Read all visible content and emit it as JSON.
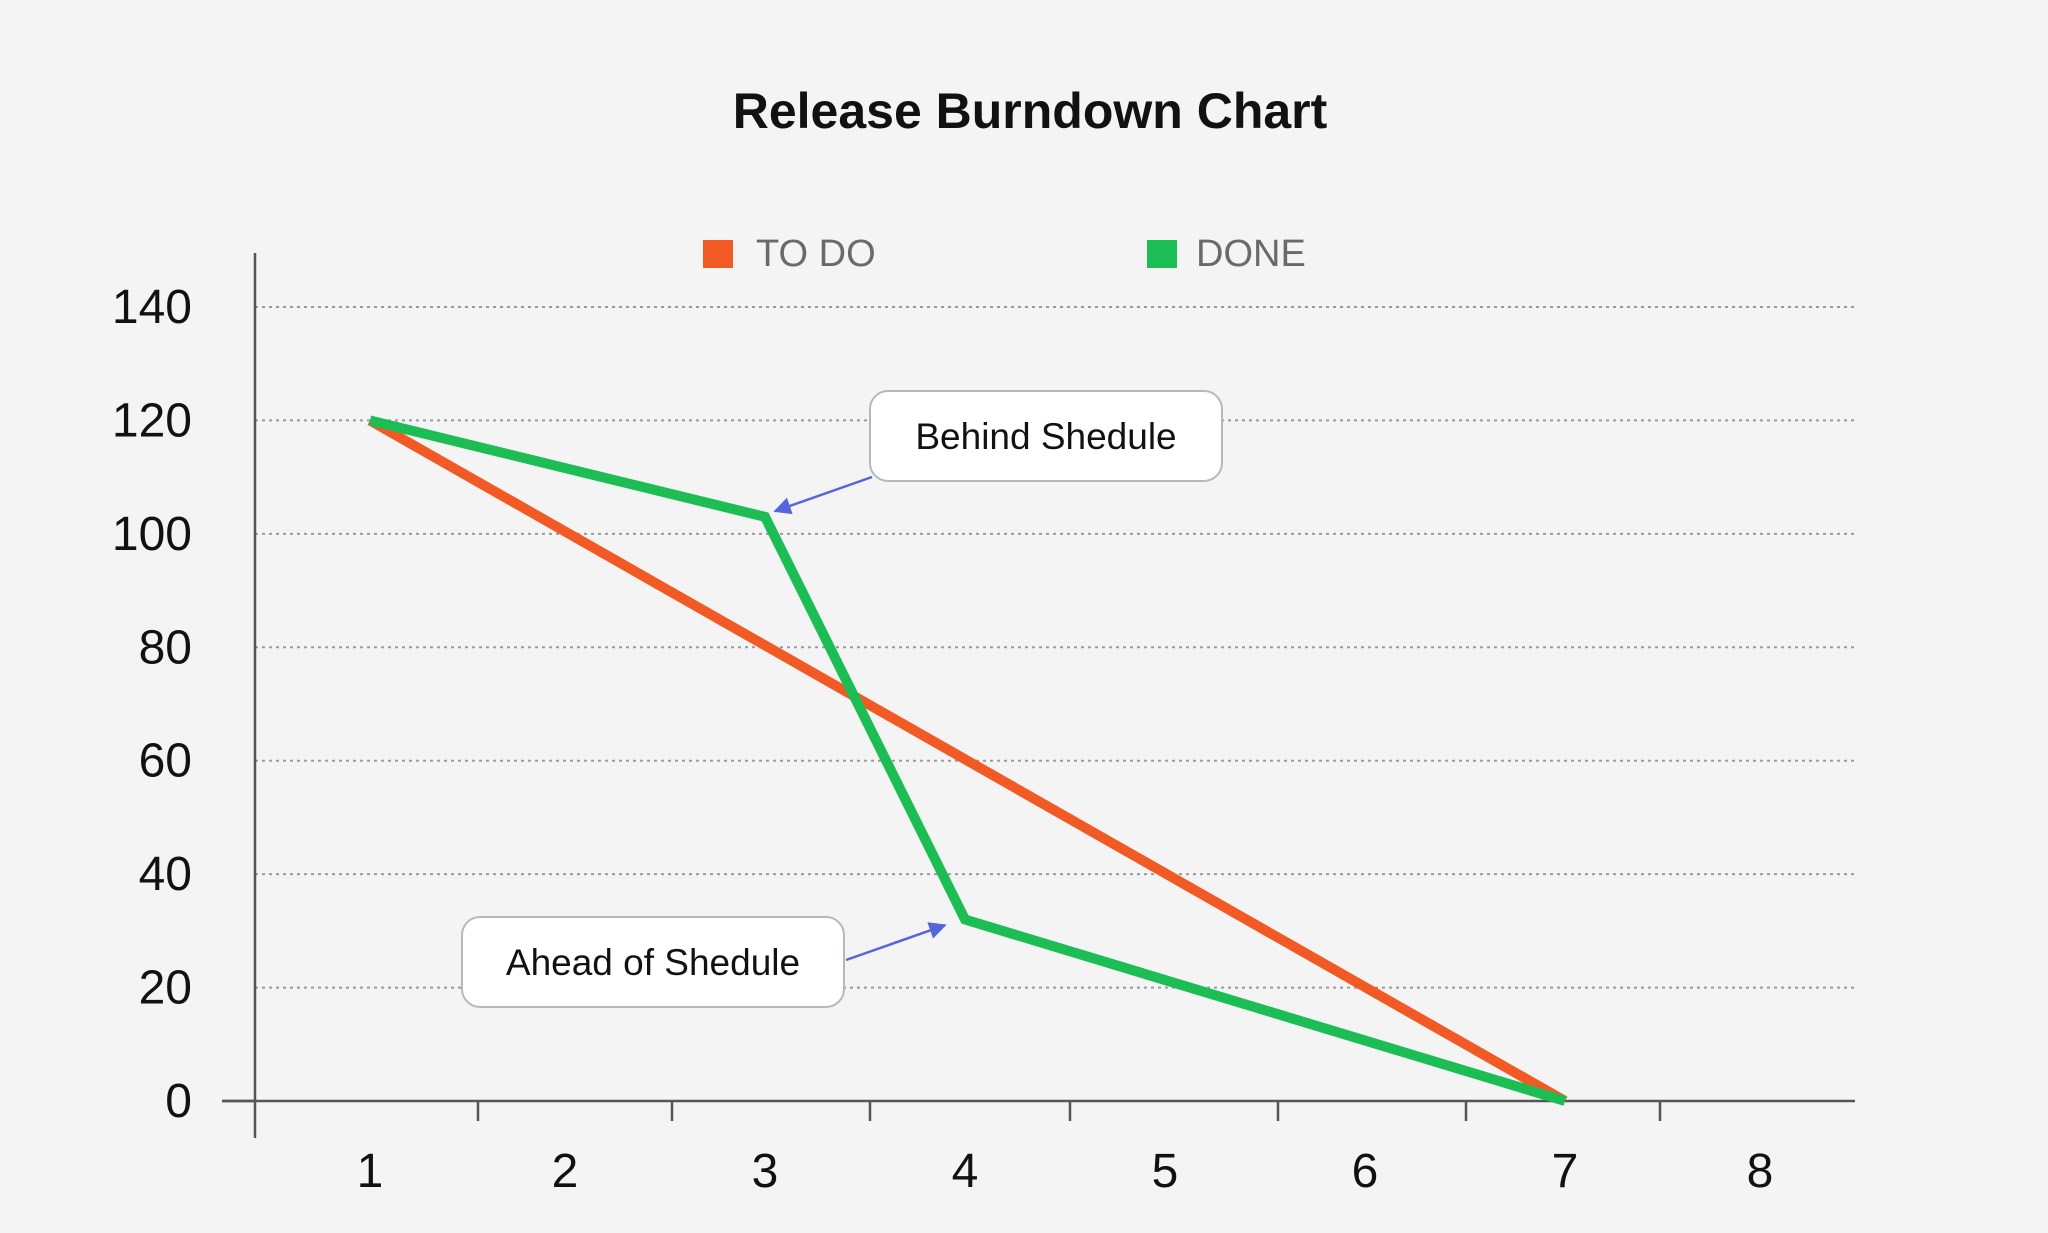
{
  "chart_data": {
    "type": "line",
    "title": "Release Burndown Chart",
    "xlabel": "",
    "ylabel": "",
    "x_ticks": [
      "1",
      "2",
      "3",
      "4",
      "5",
      "6",
      "7",
      "8"
    ],
    "y_ticks": [
      "0",
      "20",
      "40",
      "60",
      "80",
      "100",
      "120",
      "140"
    ],
    "ylim": [
      0,
      140
    ],
    "grid": "horizontal-dotted",
    "legend_position": "top",
    "series": [
      {
        "name": "TO DO",
        "color": "#f15a24",
        "points": [
          [
            1,
            120
          ],
          [
            7,
            0
          ]
        ]
      },
      {
        "name": "DONE",
        "color": "#1dbd55",
        "points": [
          [
            1,
            120
          ],
          [
            3,
            103
          ],
          [
            4,
            32
          ],
          [
            7,
            0
          ]
        ]
      }
    ],
    "annotations": [
      {
        "text": "Behind Shedule",
        "target": [
          3.05,
          104
        ]
      },
      {
        "text": "Ahead of Shedule",
        "target": [
          3.9,
          31
        ]
      }
    ],
    "annotation_arrow_color": "#5566dd"
  }
}
